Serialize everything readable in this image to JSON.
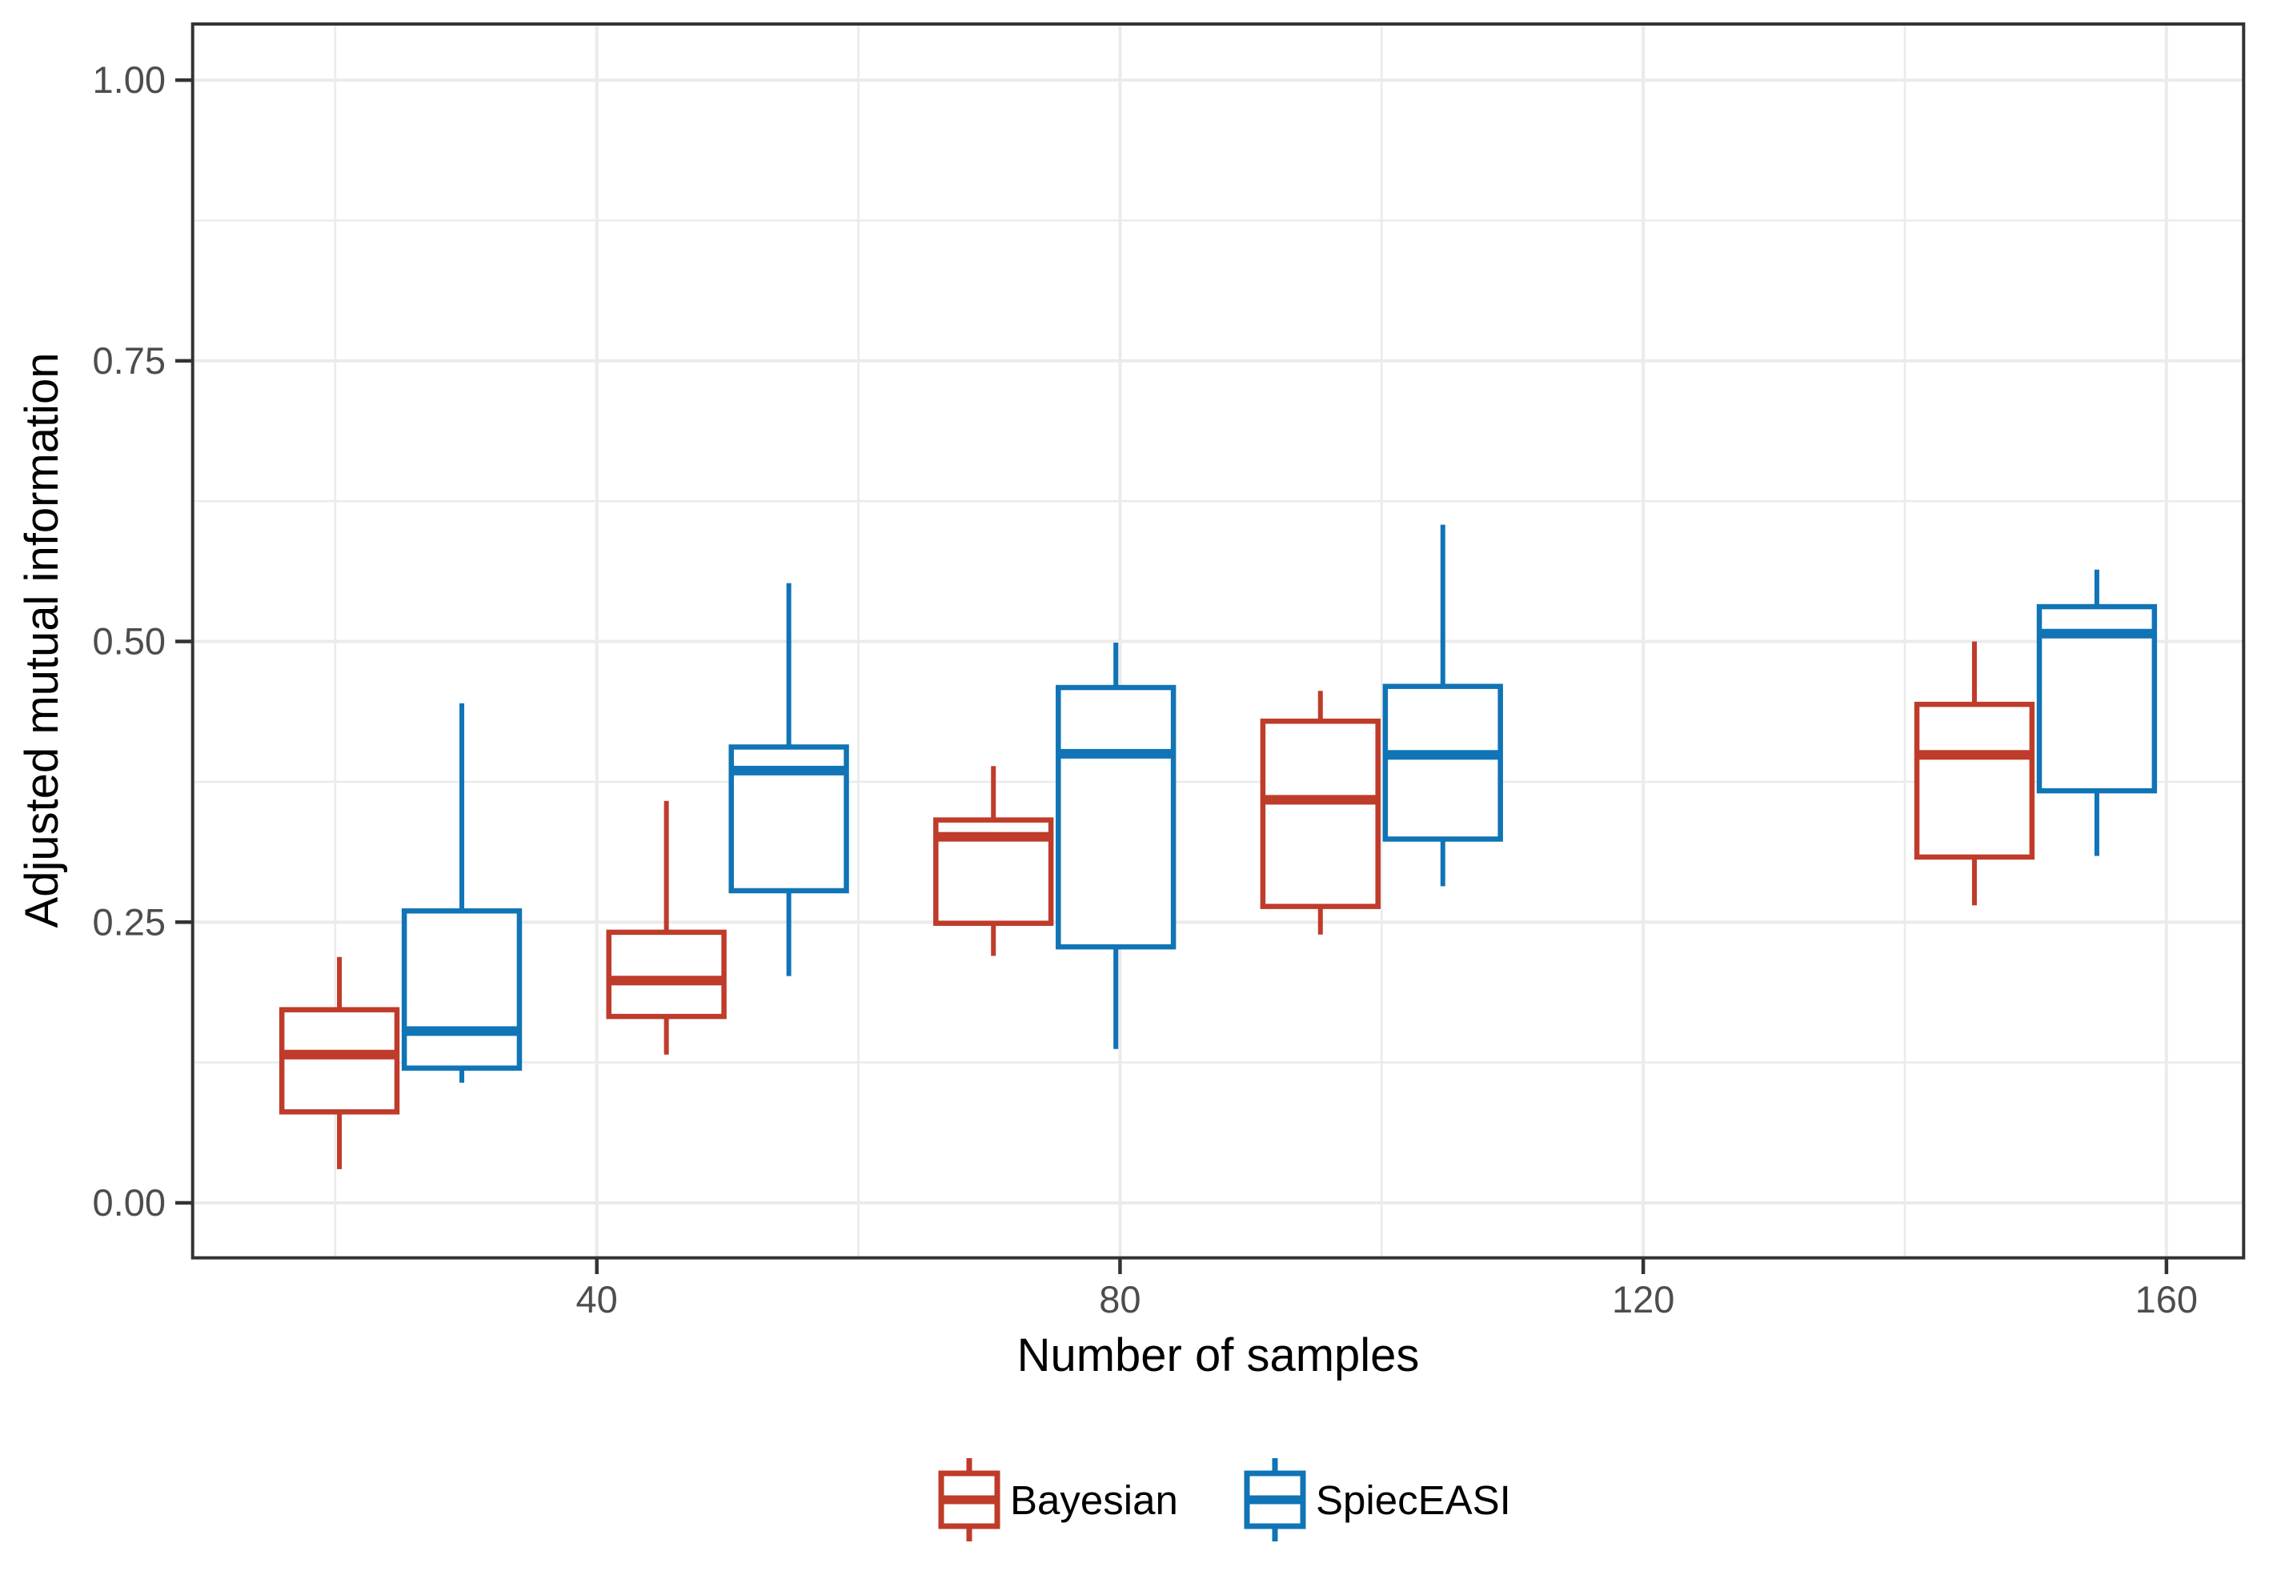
{
  "axes": {
    "y_title": "Adjusted mutual information",
    "x_title": "Number of samples"
  },
  "chart_data": {
    "type": "boxplot",
    "title": "",
    "xlabel": "Number of samples",
    "ylabel": "Adjusted mutual information",
    "xlim": [
      9.1,
      165.9
    ],
    "ylim": [
      -0.049,
      1.05
    ],
    "x_ticks": [
      40,
      80,
      120,
      160
    ],
    "x_tick_labels": [
      "40",
      "80",
      "120",
      "160"
    ],
    "x_minor_gridlines": [
      20,
      60,
      100,
      140
    ],
    "y_ticks": [
      0,
      0.25,
      0.5,
      0.75,
      1
    ],
    "y_tick_labels": [
      "0.00",
      "0.25",
      "0.50",
      "0.75",
      "1.00"
    ],
    "y_minor_gridlines": [
      0.125,
      0.375,
      0.625,
      0.875
    ],
    "grid": true,
    "legend_position": "bottom",
    "box_width": 8.8,
    "dodge_offset": 4.68,
    "colors": {
      "grid": "#ebebeb",
      "panel_border": "#333333",
      "tick_mark": "#333333",
      "tick_label": "#4d4d4d",
      "title": "#000000",
      "box_fill": "#ffffff"
    },
    "series": [
      {
        "name": "Bayesian",
        "color": "#bf3b2a",
        "dodge": "left",
        "boxes": [
          {
            "x": 25,
            "whisker_low": 0.03,
            "q1": 0.081,
            "median": 0.132,
            "q3": 0.172,
            "whisker_high": 0.219
          },
          {
            "x": 50,
            "whisker_low": 0.132,
            "q1": 0.166,
            "median": 0.198,
            "q3": 0.241,
            "whisker_high": 0.358
          },
          {
            "x": 75,
            "whisker_low": 0.22,
            "q1": 0.249,
            "median": 0.326,
            "q3": 0.341,
            "whisker_high": 0.389
          },
          {
            "x": 100,
            "whisker_low": 0.239,
            "q1": 0.264,
            "median": 0.359,
            "q3": 0.429,
            "whisker_high": 0.456
          },
          {
            "x": 150,
            "whisker_low": 0.265,
            "q1": 0.308,
            "median": 0.399,
            "q3": 0.444,
            "whisker_high": 0.5
          }
        ]
      },
      {
        "name": "SpiecEASI",
        "color": "#1074b6",
        "dodge": "right",
        "boxes": [
          {
            "x": 25,
            "whisker_low": 0.107,
            "q1": 0.12,
            "median": 0.153,
            "q3": 0.26,
            "whisker_high": 0.445
          },
          {
            "x": 50,
            "whisker_low": 0.202,
            "q1": 0.278,
            "median": 0.385,
            "q3": 0.406,
            "whisker_high": 0.552
          },
          {
            "x": 75,
            "whisker_low": 0.137,
            "q1": 0.228,
            "median": 0.4,
            "q3": 0.459,
            "whisker_high": 0.499
          },
          {
            "x": 100,
            "whisker_low": 0.282,
            "q1": 0.324,
            "median": 0.399,
            "q3": 0.46,
            "whisker_high": 0.604
          },
          {
            "x": 150,
            "whisker_low": 0.309,
            "q1": 0.367,
            "median": 0.507,
            "q3": 0.531,
            "whisker_high": 0.564
          }
        ]
      }
    ]
  },
  "legend": {
    "items": [
      {
        "label": "Bayesian",
        "color": "#bf3b2a"
      },
      {
        "label": "SpiecEASI",
        "color": "#1074b6"
      }
    ]
  }
}
